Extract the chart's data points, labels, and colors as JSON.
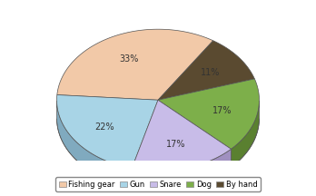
{
  "labels": [
    "Fishing gear",
    "Gun",
    "Snare",
    "Dog",
    "By hand"
  ],
  "values": [
    33,
    22,
    17,
    17,
    11
  ],
  "colors": [
    "#F2C9A8",
    "#A8D4E6",
    "#C8BCE8",
    "#7DAF4A",
    "#5A4A30"
  ],
  "shadow_colors": [
    "#C9A080",
    "#80AABF",
    "#A090C0",
    "#5A8030",
    "#3A2A10"
  ],
  "startangle": 57,
  "legend_labels": [
    "Fishing gear",
    "Gun",
    "Snare",
    "Dog",
    "By hand"
  ]
}
